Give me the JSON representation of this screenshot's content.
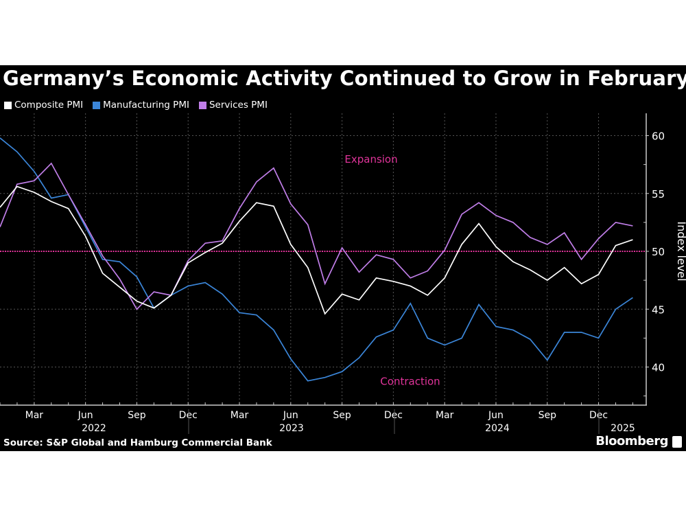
{
  "title": "Germany’s Economic Activity Continued to Grow in February",
  "source": "Source: S&P Global and Hamburg Commercial Bank",
  "brand": "Bloomberg",
  "chart_data": {
    "type": "line",
    "title": "Germany’s Economic Activity Continued to Grow in February",
    "ylabel": "Index level",
    "ylim": [
      37,
      61
    ],
    "yticks": [
      40,
      45,
      50,
      55,
      60
    ],
    "x_start": "2022-01",
    "x_end": "2025-02",
    "x_tick_labels": [
      "Mar",
      "Jun",
      "Sep",
      "Dec",
      "Mar",
      "Jun",
      "Sep",
      "Dec",
      "Mar",
      "Jun",
      "Sep",
      "Dec"
    ],
    "x_tick_months": [
      "2022-03",
      "2022-06",
      "2022-09",
      "2022-12",
      "2023-03",
      "2023-06",
      "2023-09",
      "2023-12",
      "2024-03",
      "2024-06",
      "2024-09",
      "2024-12"
    ],
    "year_labels": [
      "2022",
      "2023",
      "2024",
      "2025"
    ],
    "grid": true,
    "legend": "top-left",
    "reference_line": {
      "value": 50,
      "color": "#e0349a"
    },
    "annotations": [
      {
        "text": "Expansion",
        "color": "#e0349a"
      },
      {
        "text": "Contraction",
        "color": "#e0349a"
      }
    ],
    "series": [
      {
        "name": "Composite PMI",
        "color": "#ffffff",
        "values": [
          53.8,
          55.6,
          55.1,
          54.3,
          53.7,
          51.3,
          48.1,
          46.9,
          45.7,
          45.1,
          46.2,
          49.0,
          49.9,
          50.7,
          52.6,
          54.2,
          53.9,
          50.6,
          48.6,
          44.6,
          46.3,
          45.8,
          47.7,
          47.4,
          47.0,
          46.2,
          47.7,
          50.6,
          52.4,
          50.4,
          49.1,
          48.4,
          47.5,
          48.6,
          47.2,
          48.0,
          50.5,
          51.0
        ]
      },
      {
        "name": "Manufacturing PMI",
        "color": "#3b86d9",
        "values": [
          59.8,
          58.6,
          56.9,
          54.6,
          54.9,
          52.1,
          49.3,
          49.1,
          47.8,
          45.1,
          46.2,
          47.0,
          47.3,
          46.3,
          44.7,
          44.5,
          43.2,
          40.7,
          38.8,
          39.1,
          39.6,
          40.8,
          42.6,
          43.2,
          45.5,
          42.5,
          41.9,
          42.5,
          45.4,
          43.5,
          43.2,
          42.4,
          40.6,
          43.0,
          43.0,
          42.5,
          45.0,
          46.0
        ]
      },
      {
        "name": "Services PMI",
        "color": "#c07ee8",
        "values": [
          52.1,
          55.8,
          56.1,
          57.6,
          54.9,
          52.3,
          49.6,
          47.6,
          45.0,
          46.5,
          46.2,
          49.2,
          50.7,
          50.9,
          53.7,
          56.0,
          57.2,
          54.1,
          52.3,
          47.2,
          50.3,
          48.2,
          49.7,
          49.3,
          47.7,
          48.3,
          50.1,
          53.2,
          54.2,
          53.1,
          52.5,
          51.2,
          50.6,
          51.6,
          49.3,
          51.1,
          52.5,
          52.2
        ]
      }
    ]
  }
}
